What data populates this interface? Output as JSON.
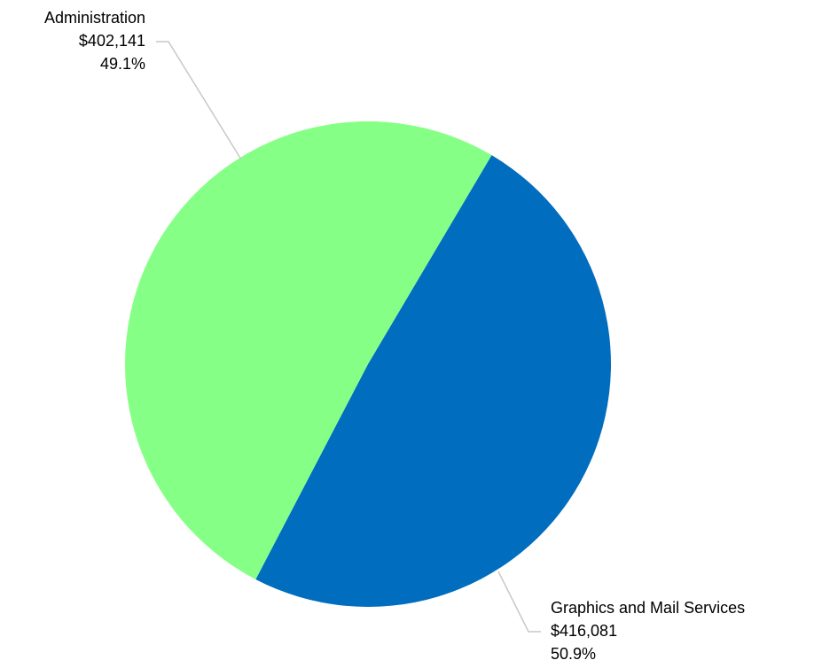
{
  "chart_data": {
    "type": "pie",
    "title": "",
    "slices": [
      {
        "label": "Administration",
        "value": 402141,
        "value_label": "$402,141",
        "percent_label": "49.1%",
        "color": "#006dbf"
      },
      {
        "label": "Graphics and Mail Services",
        "value": 416081,
        "value_label": "$416,081",
        "percent_label": "50.9%",
        "color": "#86ff86"
      }
    ]
  }
}
